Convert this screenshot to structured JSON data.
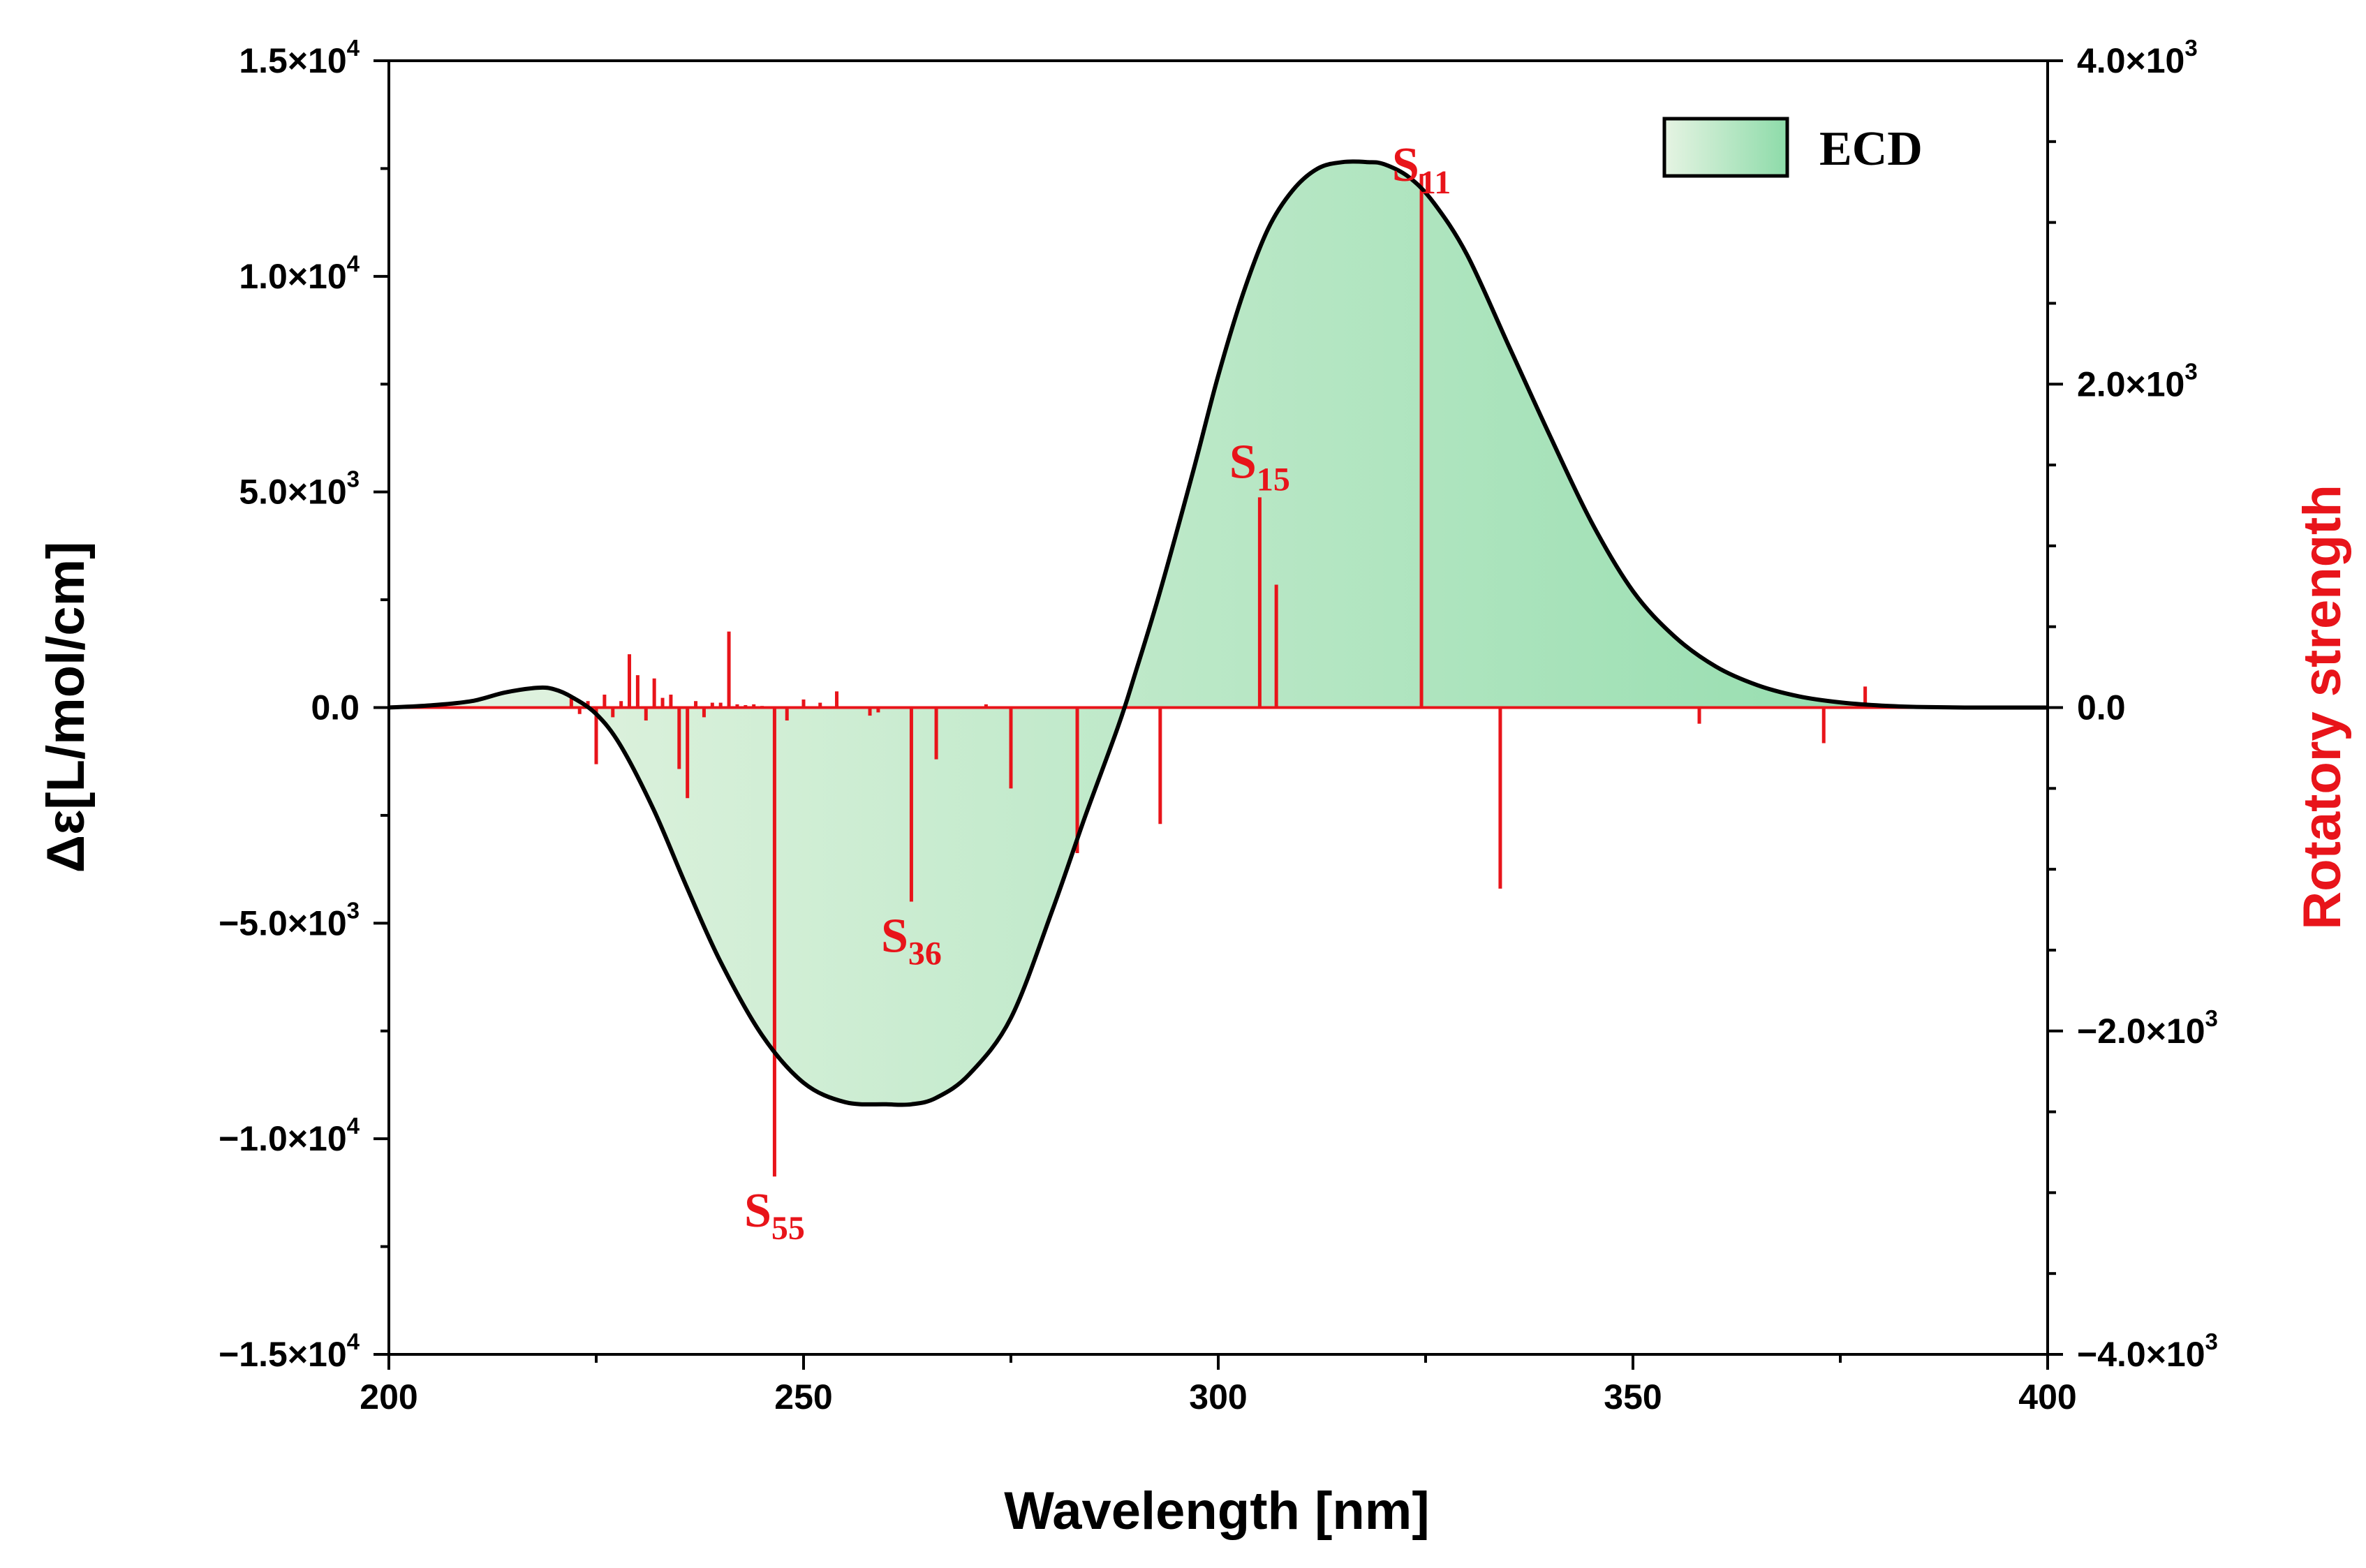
{
  "chart_data": {
    "type": "line",
    "title": "",
    "xlabel": "Wavelength [nm]",
    "ylabel_left": "Δε[L/mol/cm]",
    "ylabel_right": "Rotatory strength",
    "xlim": [
      200,
      400
    ],
    "ylim_left": [
      -15000,
      15000
    ],
    "ylim_right": [
      -4000,
      4000
    ],
    "x_ticks": [
      200,
      250,
      300,
      350,
      400
    ],
    "left_ticks": [
      {
        "value": 15000,
        "mantissa": "1.5×10",
        "exp": "4"
      },
      {
        "value": 10000,
        "mantissa": "1.0×10",
        "exp": "4"
      },
      {
        "value": 5000,
        "mantissa": "5.0×10",
        "exp": "3"
      },
      {
        "value": 0,
        "mantissa": "0.0",
        "exp": ""
      },
      {
        "value": -5000,
        "mantissa": "−5.0×10",
        "exp": "3"
      },
      {
        "value": -10000,
        "mantissa": "−1.0×10",
        "exp": "4"
      },
      {
        "value": -15000,
        "mantissa": "−1.5×10",
        "exp": "4"
      }
    ],
    "right_ticks": [
      {
        "value": 4000,
        "mantissa": "4.0×10",
        "exp": "3"
      },
      {
        "value": 2000,
        "mantissa": "2.0×10",
        "exp": "3"
      },
      {
        "value": 0,
        "mantissa": "0.0",
        "exp": ""
      },
      {
        "value": -2000,
        "mantissa": "−2.0×10",
        "exp": "3"
      },
      {
        "value": -4000,
        "mantissa": "−4.0×10",
        "exp": "3"
      }
    ],
    "legend": {
      "label": "ECD",
      "position": "top-right"
    },
    "ecd_curve": {
      "name": "ECD",
      "x": [
        200,
        205,
        210,
        214,
        218,
        220,
        222,
        225,
        228,
        232,
        236,
        240,
        245,
        250,
        255,
        260,
        263,
        266,
        270,
        275,
        280,
        284,
        288,
        290,
        293,
        297,
        300,
        303,
        306,
        309,
        312,
        315,
        318,
        320,
        323,
        326,
        330,
        335,
        340,
        345,
        350,
        355,
        360,
        365,
        370,
        375,
        380,
        385,
        390,
        395,
        400
      ],
      "y": [
        0,
        50,
        150,
        350,
        460,
        420,
        250,
        -150,
        -900,
        -2400,
        -4200,
        -5900,
        -7600,
        -8700,
        -9150,
        -9200,
        -9200,
        -9050,
        -8500,
        -7200,
        -4700,
        -2500,
        -400,
        800,
        2700,
        5500,
        7700,
        9600,
        11100,
        12000,
        12500,
        12650,
        12650,
        12600,
        12300,
        11700,
        10500,
        8400,
        6300,
        4300,
        2700,
        1650,
        950,
        520,
        260,
        120,
        45,
        12,
        0,
        0,
        0
      ]
    },
    "stick_spectrum": {
      "name": "Rotatory strength",
      "x": [
        222,
        223,
        224,
        225,
        226,
        227,
        228,
        229,
        230,
        231,
        232,
        233,
        234,
        235,
        236,
        237,
        238,
        239,
        240,
        241,
        242,
        243,
        244,
        245,
        246.5,
        248,
        250,
        252,
        254,
        258,
        259,
        263,
        266,
        272,
        275,
        283,
        293,
        305,
        307,
        324.5,
        334,
        358,
        373,
        378
      ],
      "y": [
        60,
        -40,
        40,
        -350,
        80,
        -60,
        40,
        330,
        200,
        -80,
        180,
        60,
        80,
        -380,
        -560,
        40,
        -60,
        30,
        30,
        470,
        20,
        15,
        20,
        10,
        -2900,
        -80,
        50,
        30,
        100,
        -50,
        -30,
        -1200,
        -320,
        20,
        -500,
        -900,
        -720,
        1300,
        760,
        3300,
        -1120,
        -100,
        -220,
        130
      ]
    },
    "annotations": [
      {
        "name": "S11",
        "letter": "S",
        "sub": "11",
        "x": 324.5
      },
      {
        "name": "S15",
        "letter": "S",
        "sub": "15",
        "x": 305
      },
      {
        "name": "S36",
        "letter": "S",
        "sub": "36",
        "x": 263
      },
      {
        "name": "S55",
        "letter": "S",
        "sub": "55",
        "x": 246.5
      }
    ],
    "colors": {
      "curve": "#000000",
      "sticks": "#e8141a",
      "right_axis_title": "#e8141a",
      "fill_light": "#e6f4e3",
      "fill_dark": "#8ddba9"
    }
  }
}
